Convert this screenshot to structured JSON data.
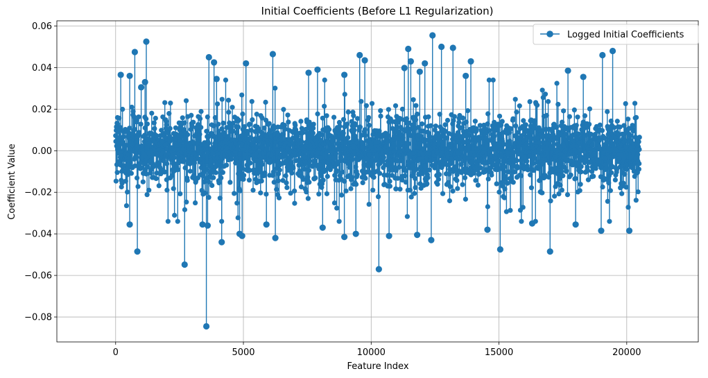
{
  "chart_data": {
    "type": "stem",
    "title": "Initial Coefficients (Before L1 Regularization)",
    "xlabel": "Feature Index",
    "ylabel": "Coefficient Value",
    "xlim": [
      -2300,
      22800
    ],
    "ylim": [
      -0.092,
      0.0625
    ],
    "xticks": [
      0,
      5000,
      10000,
      15000,
      20000
    ],
    "yticks": [
      -0.08,
      -0.06,
      -0.04,
      -0.02,
      0.0,
      0.02,
      0.04,
      0.06
    ],
    "ytick_labels": [
      "−0.08",
      "−0.06",
      "−0.04",
      "−0.02",
      "0.00",
      "0.02",
      "0.04",
      "0.06"
    ],
    "grid": true,
    "legend_position": "top-right",
    "series": [
      {
        "name": "Logged Initial Coefficients",
        "color": "#1f77b4",
        "n_features": 20500,
        "notable_points": [
          {
            "x": 3550,
            "y": -0.0845
          },
          {
            "x": 10300,
            "y": -0.057
          },
          {
            "x": 2700,
            "y": -0.0548
          },
          {
            "x": 1200,
            "y": 0.0525
          },
          {
            "x": 12400,
            "y": 0.0555
          },
          {
            "x": 12750,
            "y": 0.05
          },
          {
            "x": 13200,
            "y": 0.0495
          },
          {
            "x": 11450,
            "y": 0.049
          },
          {
            "x": 850,
            "y": -0.0485
          },
          {
            "x": 17000,
            "y": -0.0485
          },
          {
            "x": 19450,
            "y": 0.048
          },
          {
            "x": 15050,
            "y": -0.0475
          },
          {
            "x": 750,
            "y": 0.0475
          },
          {
            "x": 6150,
            "y": 0.0465
          },
          {
            "x": 9550,
            "y": 0.046
          },
          {
            "x": 19050,
            "y": 0.046
          },
          {
            "x": 3650,
            "y": 0.045
          },
          {
            "x": 4150,
            "y": -0.044
          },
          {
            "x": 13900,
            "y": 0.043
          },
          {
            "x": 11550,
            "y": 0.043
          },
          {
            "x": 12350,
            "y": -0.043
          },
          {
            "x": 9750,
            "y": 0.0435
          },
          {
            "x": 12100,
            "y": 0.042
          },
          {
            "x": 3850,
            "y": 0.0425
          },
          {
            "x": 5100,
            "y": 0.042
          },
          {
            "x": 6250,
            "y": -0.042
          },
          {
            "x": 8950,
            "y": -0.0415
          },
          {
            "x": 4950,
            "y": -0.041
          },
          {
            "x": 10700,
            "y": -0.041
          },
          {
            "x": 11800,
            "y": -0.0405
          },
          {
            "x": 9400,
            "y": -0.04
          },
          {
            "x": 4850,
            "y": -0.04
          },
          {
            "x": 11300,
            "y": 0.0398
          },
          {
            "x": 7900,
            "y": 0.039
          },
          {
            "x": 17700,
            "y": 0.0385
          },
          {
            "x": 20100,
            "y": -0.0385
          },
          {
            "x": 19000,
            "y": -0.0385
          },
          {
            "x": 14550,
            "y": -0.038
          },
          {
            "x": 11900,
            "y": 0.038
          },
          {
            "x": 7550,
            "y": 0.0375
          },
          {
            "x": 8100,
            "y": -0.037
          },
          {
            "x": 8950,
            "y": 0.0365
          },
          {
            "x": 200,
            "y": 0.0365
          },
          {
            "x": 550,
            "y": 0.036
          },
          {
            "x": 13700,
            "y": 0.036
          },
          {
            "x": 3600,
            "y": -0.036
          },
          {
            "x": 18300,
            "y": 0.0355
          },
          {
            "x": 18000,
            "y": -0.0355
          },
          {
            "x": 5900,
            "y": -0.0355
          },
          {
            "x": 3400,
            "y": -0.0355
          },
          {
            "x": 16300,
            "y": -0.035
          },
          {
            "x": 550,
            "y": -0.0355
          },
          {
            "x": 3950,
            "y": 0.0345
          },
          {
            "x": 1000,
            "y": 0.0305
          },
          {
            "x": 1150,
            "y": 0.033
          }
        ]
      }
    ]
  }
}
